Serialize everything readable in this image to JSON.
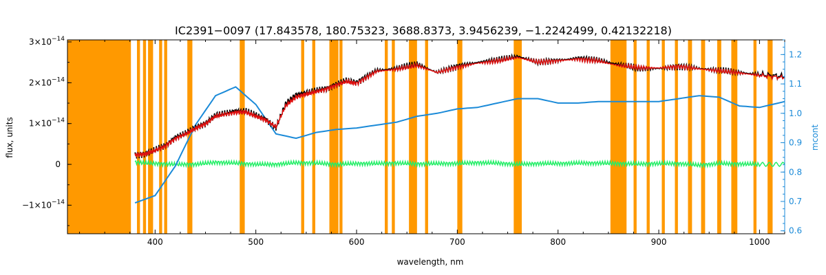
{
  "chart_data": {
    "type": "line",
    "title": "IC2391−0097    (17.843578, 180.75323, 3688.8373, 3.9456239, −1.2242499, 0.42132218)",
    "xlabel": "wavelength, nm",
    "ylabel": "flux, units",
    "y2label": "mcont",
    "xlim": [
      313,
      1025
    ],
    "ylim": [
      -1.7e-14,
      3.05e-14
    ],
    "y2lim": [
      0.59,
      1.25
    ],
    "grid": false,
    "x_ticks": [
      {
        "value": 400,
        "label": "400"
      },
      {
        "value": 500,
        "label": "500"
      },
      {
        "value": 600,
        "label": "600"
      },
      {
        "value": 700,
        "label": "700"
      },
      {
        "value": 800,
        "label": "800"
      },
      {
        "value": 900,
        "label": "900"
      },
      {
        "value": 1000,
        "label": "1000"
      }
    ],
    "y_ticks": [
      {
        "value": -1e-14,
        "label": "−1×10",
        "exp": "−14"
      },
      {
        "value": 0,
        "label": "0",
        "exp": ""
      },
      {
        "value": 1e-14,
        "label": "1×10",
        "exp": "−14"
      },
      {
        "value": 2e-14,
        "label": "2×10",
        "exp": "−14"
      },
      {
        "value": 3e-14,
        "label": "3×10",
        "exp": "−14"
      }
    ],
    "y2_ticks": [
      {
        "value": 0.6,
        "label": "0.6"
      },
      {
        "value": 0.7,
        "label": "0.7"
      },
      {
        "value": 0.8,
        "label": "0.8"
      },
      {
        "value": 0.9,
        "label": "0.9"
      },
      {
        "value": 1.0,
        "label": "1.0"
      },
      {
        "value": 1.1,
        "label": "1.1"
      },
      {
        "value": 1.2,
        "label": "1.2"
      }
    ],
    "masked_bands": [
      [
        313,
        376
      ],
      [
        382,
        385
      ],
      [
        388,
        391
      ],
      [
        393,
        398
      ],
      [
        404,
        407
      ],
      [
        409,
        412
      ],
      [
        432,
        437
      ],
      [
        484,
        489
      ],
      [
        545,
        548
      ],
      [
        556,
        559
      ],
      [
        573,
        582
      ],
      [
        583,
        586
      ],
      [
        628,
        631
      ],
      [
        635,
        638
      ],
      [
        652,
        660
      ],
      [
        668,
        671
      ],
      [
        700,
        705
      ],
      [
        756,
        764
      ],
      [
        852,
        868
      ],
      [
        875,
        878
      ],
      [
        888,
        891
      ],
      [
        903,
        906
      ],
      [
        916,
        919
      ],
      [
        929,
        933
      ],
      [
        942,
        946
      ],
      [
        958,
        962
      ],
      [
        972,
        978
      ],
      [
        994,
        997
      ],
      [
        1008,
        1013
      ]
    ],
    "series": [
      {
        "role": "observed",
        "color": "#000000",
        "x": [
          380,
          390,
          400,
          410,
          420,
          430,
          440,
          450,
          460,
          470,
          480,
          490,
          500,
          510,
          520,
          530,
          540,
          550,
          560,
          570,
          580,
          590,
          600,
          620,
          640,
          660,
          680,
          700,
          720,
          740,
          760,
          780,
          800,
          820,
          840,
          860,
          880,
          900,
          920,
          940,
          960,
          980,
          1000,
          1025
        ],
        "y": [
          2.3e-15,
          2.5e-15,
          3.5e-15,
          4.5e-15,
          6.5e-15,
          7.5e-15,
          9e-15,
          1e-14,
          1.2e-14,
          1.25e-14,
          1.3e-14,
          1.3e-14,
          1.2e-14,
          1.1e-14,
          9e-15,
          1.5e-14,
          1.7e-14,
          1.75e-14,
          1.8e-14,
          1.85e-14,
          1.95e-14,
          2.05e-14,
          2e-14,
          2.3e-14,
          2.35e-14,
          2.45e-14,
          2.25e-14,
          2.4e-14,
          2.5e-14,
          2.55e-14,
          2.65e-14,
          2.5e-14,
          2.55e-14,
          2.6e-14,
          2.55e-14,
          2.45e-14,
          2.35e-14,
          2.35e-14,
          2.4e-14,
          2.35e-14,
          2.3e-14,
          2.25e-14,
          2.2e-14,
          2.15e-14
        ]
      },
      {
        "role": "model",
        "color": "#e01010",
        "x": [
          380,
          390,
          400,
          410,
          420,
          430,
          440,
          450,
          460,
          470,
          480,
          490,
          500,
          510,
          520,
          530,
          540,
          550,
          560,
          570,
          580,
          590,
          600,
          620,
          640,
          660,
          680,
          700,
          720,
          740,
          760,
          780,
          800,
          820,
          840,
          860,
          880,
          900,
          920,
          940,
          960,
          980,
          1000,
          1025
        ],
        "y": [
          2.3e-15,
          2.5e-15,
          3.4e-15,
          4.4e-15,
          6.3e-15,
          7.4e-15,
          8.8e-15,
          9.9e-15,
          1.18e-14,
          1.23e-14,
          1.27e-14,
          1.28e-14,
          1.18e-14,
          1.08e-14,
          9.2e-15,
          1.45e-14,
          1.65e-14,
          1.72e-14,
          1.78e-14,
          1.84e-14,
          1.94e-14,
          2.03e-14,
          1.98e-14,
          2.28e-14,
          2.33e-14,
          2.42e-14,
          2.25e-14,
          2.38e-14,
          2.48e-14,
          2.53e-14,
          2.62e-14,
          2.5e-14,
          2.54e-14,
          2.58e-14,
          2.53e-14,
          2.42e-14,
          2.37e-14,
          2.36e-14,
          2.4e-14,
          2.34e-14,
          2.29e-14,
          2.24e-14,
          2.18e-14,
          2.12e-14
        ]
      },
      {
        "role": "residual",
        "color": "#22ee66",
        "x": [
          380,
          400,
          420,
          440,
          460,
          480,
          500,
          520,
          540,
          560,
          580,
          600,
          620,
          640,
          660,
          680,
          700,
          720,
          740,
          760,
          780,
          800,
          820,
          840,
          860,
          880,
          900,
          920,
          940,
          960,
          980,
          1000,
          1025
        ],
        "y": [
          5e-16,
          2e-16,
          0.0,
          0.0,
          5e-16,
          3e-16,
          0.0,
          0.0,
          4e-16,
          3e-16,
          0.0,
          2e-16,
          2e-16,
          3e-16,
          1e-16,
          2e-16,
          2e-16,
          4e-16,
          3e-16,
          0.0,
          2e-16,
          2e-16,
          3e-16,
          3e-16,
          2e-16,
          1e-16,
          2e-16,
          2e-16,
          -2e-16,
          2e-16,
          1e-16,
          0.0,
          0.0
        ]
      },
      {
        "role": "continuum",
        "axis": "right",
        "color": "#1a8ad8",
        "x": [
          380,
          400,
          420,
          440,
          460,
          480,
          500,
          520,
          540,
          560,
          580,
          600,
          620,
          640,
          660,
          680,
          700,
          720,
          740,
          760,
          780,
          800,
          820,
          840,
          860,
          880,
          900,
          920,
          940,
          960,
          980,
          1000,
          1025
        ],
        "y": [
          0.695,
          0.72,
          0.82,
          0.96,
          1.06,
          1.09,
          1.03,
          0.93,
          0.915,
          0.935,
          0.945,
          0.95,
          0.96,
          0.97,
          0.99,
          1.0,
          1.015,
          1.02,
          1.035,
          1.05,
          1.05,
          1.035,
          1.035,
          1.04,
          1.04,
          1.04,
          1.04,
          1.05,
          1.06,
          1.055,
          1.025,
          1.02,
          1.04
        ]
      }
    ]
  }
}
